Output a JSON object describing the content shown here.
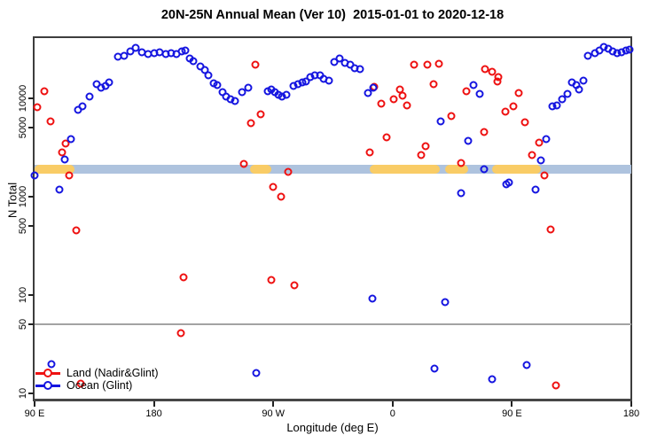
{
  "title": "20N-25N Annual Mean (Ver 10)  2015-01-01 to 2020-12-18",
  "legend": {
    "items": [
      {
        "label": "Land (Nadir&Glint)",
        "series": "land"
      },
      {
        "label": "Ocean (Glint)",
        "series": "ocean"
      }
    ]
  },
  "chart_data": {
    "type": "scatter",
    "title": "20N-25N Annual Mean (Ver 10)  2015-01-01 to 2020-12-18",
    "xlabel": "Longitude (deg E)",
    "ylabel": "N Total",
    "x_axis": {
      "min": 90,
      "max": 540,
      "note": "longitude axis spans 450 deg: 90E -> 180 -> 90W -> 0 -> 90E -> 180",
      "ticks": [
        {
          "pos": 90,
          "label": "90 E"
        },
        {
          "pos": 180,
          "label": "180"
        },
        {
          "pos": 270,
          "label": "90 W"
        },
        {
          "pos": 360,
          "label": "0"
        },
        {
          "pos": 450,
          "label": "90 E"
        },
        {
          "pos": 540,
          "label": "180"
        }
      ]
    },
    "y_axis": {
      "scale": "log",
      "min": 8.5,
      "max": 42000,
      "ticks": [
        {
          "value": 10000,
          "label": "10000"
        },
        {
          "value": 5000,
          "label": "5000"
        },
        {
          "value": 1000,
          "label": "1000"
        },
        {
          "value": 500,
          "label": "500"
        },
        {
          "value": 100,
          "label": "100"
        },
        {
          "value": 50,
          "label": "50"
        },
        {
          "value": 10,
          "label": "10"
        }
      ],
      "grid": false
    },
    "reference_line": {
      "value": 50,
      "color": "#a3a3a3"
    },
    "surface_band": {
      "top_value": 2100,
      "bottom_value": 1700,
      "ocean_color": "#aec3de",
      "land_color": "#f9cc66",
      "land_segments": [
        {
          "from": 90,
          "to": 120
        },
        {
          "from": 252.5,
          "to": 268.5
        },
        {
          "from": 342.7,
          "to": 395.6
        },
        {
          "from": 399.6,
          "to": 417
        },
        {
          "from": 435,
          "to": 471.7
        }
      ]
    },
    "series": [
      {
        "name": "Land (Nadir&Glint)",
        "id": "land",
        "color": "#ee1111",
        "marker": "open-circle",
        "points": [
          [
            97.3,
            11700
          ],
          [
            92,
            8100
          ],
          [
            102,
            5800
          ],
          [
            113.3,
            3470
          ],
          [
            110.7,
            2820
          ],
          [
            116,
            1660
          ],
          [
            121.3,
            450
          ],
          [
            124.7,
            12.5
          ],
          [
            202,
            150
          ],
          [
            200,
            41
          ],
          [
            248,
            2150
          ],
          [
            253.3,
            5600
          ],
          [
            256.7,
            22000
          ],
          [
            260.7,
            6880
          ],
          [
            268.7,
            143
          ],
          [
            270,
            1260
          ],
          [
            276,
            1000
          ],
          [
            281.3,
            1790
          ],
          [
            286,
            125
          ],
          [
            342.7,
            2820
          ],
          [
            346,
            13000
          ],
          [
            351.3,
            8800
          ],
          [
            355.3,
            4000
          ],
          [
            360.7,
            9800
          ],
          [
            365.5,
            12300
          ],
          [
            367.8,
            10700
          ],
          [
            370.7,
            8500
          ],
          [
            376,
            22200
          ],
          [
            381.3,
            2640
          ],
          [
            384.7,
            3260
          ],
          [
            386,
            22200
          ],
          [
            390.7,
            13900
          ],
          [
            394.7,
            22600
          ],
          [
            404,
            6600
          ],
          [
            411.3,
            2190
          ],
          [
            415.3,
            11800
          ],
          [
            428.7,
            4550
          ],
          [
            430,
            19900
          ],
          [
            434.7,
            18800
          ],
          [
            438.7,
            14800
          ],
          [
            440,
            16600
          ],
          [
            445.3,
            7300
          ],
          [
            451,
            8300
          ],
          [
            455,
            11400
          ],
          [
            460,
            5700
          ],
          [
            465.3,
            2640
          ],
          [
            470.7,
            3540
          ],
          [
            474.7,
            1630
          ],
          [
            479.3,
            460
          ],
          [
            483.3,
            12
          ]
        ]
      },
      {
        "name": "Ocean (Glint)",
        "id": "ocean",
        "color": "#1515e0",
        "marker": "open-circle",
        "points": [
          [
            90,
            1640
          ],
          [
            103,
            20
          ],
          [
            108.7,
            1180
          ],
          [
            112.7,
            2390
          ],
          [
            117.4,
            3860
          ],
          [
            122.8,
            7640
          ],
          [
            126,
            8300
          ],
          [
            131.4,
            10400
          ],
          [
            136.8,
            13900
          ],
          [
            140,
            12700
          ],
          [
            143.4,
            13300
          ],
          [
            146,
            14500
          ],
          [
            152.7,
            26500
          ],
          [
            157.3,
            27000
          ],
          [
            162,
            29900
          ],
          [
            166,
            32500
          ],
          [
            170.7,
            29300
          ],
          [
            175.3,
            28100
          ],
          [
            180,
            28700
          ],
          [
            184,
            29300
          ],
          [
            188.7,
            28100
          ],
          [
            193.3,
            28700
          ],
          [
            197.3,
            28100
          ],
          [
            201.3,
            29900
          ],
          [
            203.5,
            30600
          ],
          [
            207,
            25400
          ],
          [
            209.7,
            23900
          ],
          [
            215,
            21100
          ],
          [
            218.4,
            19500
          ],
          [
            221,
            17200
          ],
          [
            225,
            14200
          ],
          [
            227.7,
            13700
          ],
          [
            231.7,
            11600
          ],
          [
            234.4,
            10400
          ],
          [
            237.7,
            9800
          ],
          [
            241,
            9400
          ],
          [
            246.6,
            11600
          ],
          [
            251.3,
            12900
          ],
          [
            257.3,
            16
          ],
          [
            266,
            11900
          ],
          [
            268.6,
            12400
          ],
          [
            271.3,
            11600
          ],
          [
            274,
            10900
          ],
          [
            276.6,
            10500
          ],
          [
            280,
            10900
          ],
          [
            285.3,
            13300
          ],
          [
            288.6,
            13900
          ],
          [
            292,
            14400
          ],
          [
            294.7,
            14700
          ],
          [
            298,
            16400
          ],
          [
            301.3,
            17100
          ],
          [
            305.3,
            17100
          ],
          [
            308,
            15700
          ],
          [
            312,
            15100
          ],
          [
            316,
            23300
          ],
          [
            320,
            25300
          ],
          [
            324,
            22700
          ],
          [
            328,
            21800
          ],
          [
            331.3,
            20300
          ],
          [
            335.3,
            19900
          ],
          [
            341.3,
            11400
          ],
          [
            344.7,
            92
          ],
          [
            345.3,
            12700
          ],
          [
            391.3,
            18
          ],
          [
            396.3,
            5830
          ],
          [
            399.3,
            85
          ],
          [
            411.3,
            1090
          ],
          [
            417.3,
            3700
          ],
          [
            421,
            13600
          ],
          [
            425.7,
            11200
          ],
          [
            429.3,
            1910
          ],
          [
            434.7,
            14
          ],
          [
            446,
            1350
          ],
          [
            448,
            1400
          ],
          [
            461.3,
            19.5
          ],
          [
            467.7,
            1180
          ],
          [
            471.7,
            2350
          ],
          [
            475.7,
            3860
          ],
          [
            480.6,
            8300
          ],
          [
            484,
            8470
          ],
          [
            488,
            9800
          ],
          [
            492,
            11100
          ],
          [
            495.3,
            14500
          ],
          [
            498.7,
            13600
          ],
          [
            500.7,
            12200
          ],
          [
            504,
            15100
          ],
          [
            507.3,
            27000
          ],
          [
            512.7,
            28900
          ],
          [
            516,
            30600
          ],
          [
            519.3,
            33400
          ],
          [
            522.7,
            32000
          ],
          [
            526,
            30000
          ],
          [
            529.3,
            28700
          ],
          [
            532.7,
            29300
          ],
          [
            536,
            30600
          ],
          [
            538.7,
            31200
          ]
        ]
      }
    ]
  }
}
